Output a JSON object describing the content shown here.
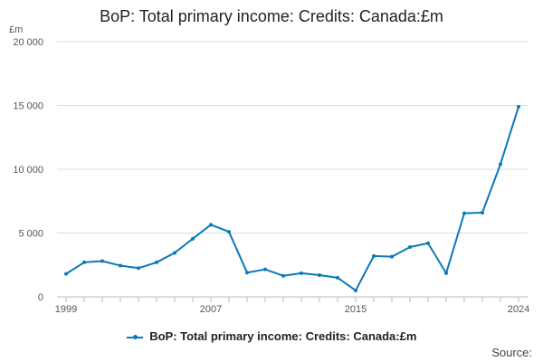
{
  "colors": {
    "series": "#0a79b8",
    "grid": "#dddddd",
    "axis": "#bbbbbb"
  },
  "source_label": "Source:",
  "chart_data": {
    "type": "line",
    "title": "BoP: Total primary income: Credits: Canada:£m",
    "ylabel": "£m",
    "xlabel": "",
    "ylim": [
      0,
      20000
    ],
    "y_ticks": [
      0,
      5000,
      10000,
      15000,
      20000
    ],
    "y_tick_labels": [
      "0",
      "5 000",
      "10 000",
      "15 000",
      "20 000"
    ],
    "x_tick_labels": [
      "1999",
      "2007",
      "2015",
      "2024"
    ],
    "grid": true,
    "legend": "bottom",
    "series": [
      {
        "name": "BoP: Total primary income: Credits: Canada:£m",
        "x": [
          1999,
          2000,
          2001,
          2002,
          2003,
          2004,
          2005,
          2006,
          2007,
          2008,
          2009,
          2010,
          2011,
          2012,
          2013,
          2014,
          2015,
          2016,
          2017,
          2018,
          2019,
          2020,
          2021,
          2022,
          2023,
          2024
        ],
        "values": [
          1800,
          2700,
          2800,
          2450,
          2250,
          2700,
          3450,
          4550,
          5650,
          5100,
          1900,
          2150,
          1650,
          1850,
          1700,
          1500,
          500,
          3200,
          3150,
          3900,
          4200,
          1850,
          6550,
          6600,
          10400,
          14900
        ]
      }
    ]
  }
}
